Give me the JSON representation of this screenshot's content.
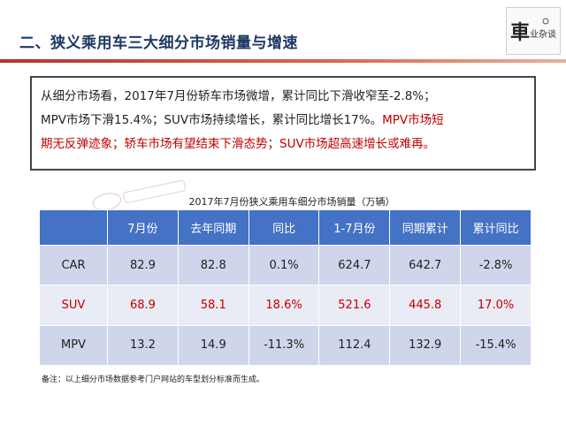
{
  "title": "二、狭义乘用车三大细分市场销量与增速",
  "logo_text": "车业杂谈",
  "summary": {
    "line1": "从细分市场看，2017年7月份轿车市场微增，累计同比下滑收窄至-2.8%；",
    "line2": "MPV市场下滑15.4%；SUV市场持续增长，累计同比增长17%。",
    "line2_highlight": "MPV市场短",
    "line3_highlight": "期无反弹迹象；轿车市场有望结束下滑态势；SUV市场超高速增长或难再。"
  },
  "table": {
    "caption": "2017年7月份狭义乘用车细分市场销量（万辆）",
    "headers": [
      "",
      "7月份",
      "去年同期",
      "同比",
      "1-7月份",
      "同期累计",
      "累计同比"
    ],
    "rows": [
      {
        "label": "CAR",
        "values": [
          "82.9",
          "82.8",
          "0.1%",
          "624.7",
          "642.7",
          "-2.8%"
        ]
      },
      {
        "label": "SUV",
        "values": [
          "68.9",
          "58.1",
          "18.6%",
          "521.6",
          "445.8",
          "17.0%"
        ]
      },
      {
        "label": "MPV",
        "values": [
          "13.2",
          "14.9",
          "-11.3%",
          "112.4",
          "132.9",
          "-15.4%"
        ]
      }
    ]
  },
  "footnote": "备注：以上细分市场数据参考门户网站的车型划分标准而生成。",
  "colors": {
    "title": "#1f3864",
    "accent_red": "#c00000",
    "header_blue": "#4472c4",
    "row_dark": "#cfd5ea",
    "row_light": "#e9ebf5"
  }
}
